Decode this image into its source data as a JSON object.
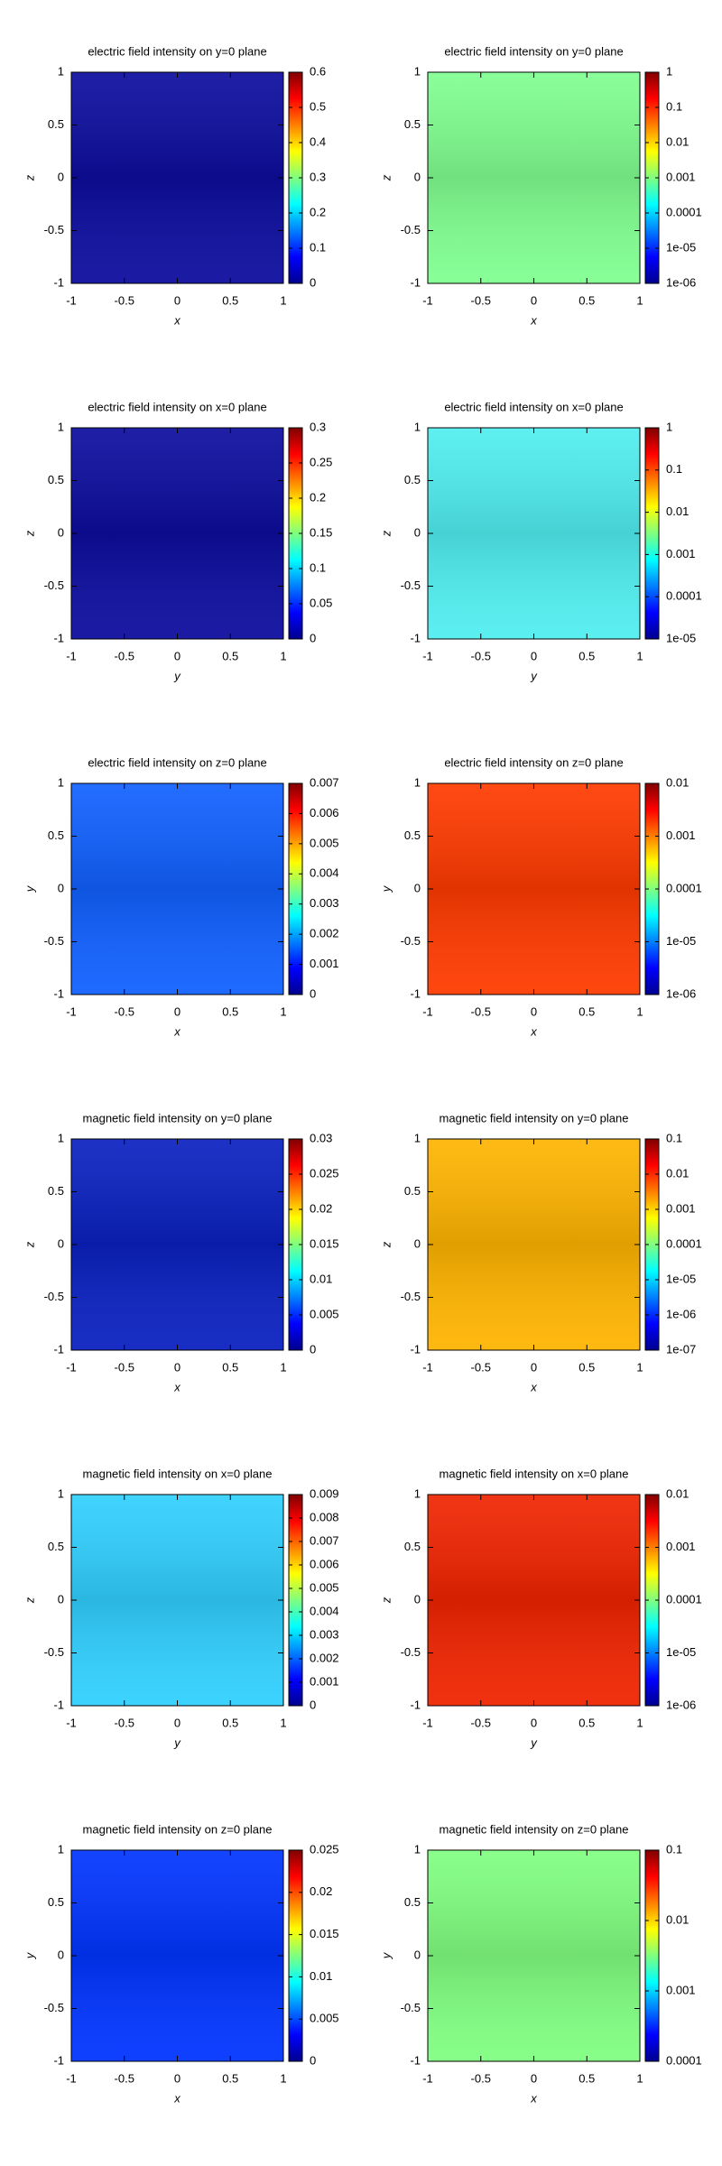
{
  "chart_data": [
    {
      "type": "heatmap",
      "title": "electric field intensity on y=0 plane",
      "xlabel": "x",
      "ylabel": "z",
      "xlim": [
        -1,
        1
      ],
      "xticks": [
        -1,
        -0.5,
        0,
        0.5,
        1
      ],
      "ylim": [
        -1,
        1
      ],
      "yticks": [
        -1,
        -0.5,
        0,
        0.5,
        1
      ],
      "color": "#0c0c9e",
      "clim": [
        0,
        0.6
      ],
      "cticks": [
        0,
        0.1,
        0.2,
        0.3,
        0.4,
        0.5,
        0.6
      ],
      "log_colorbar": false
    },
    {
      "type": "heatmap",
      "title": "electric field intensity on y=0 plane",
      "xlabel": "x",
      "ylabel": "z",
      "xlim": [
        -1,
        1
      ],
      "xticks": [
        -1,
        -0.5,
        0,
        0.5,
        1
      ],
      "ylim": [
        -1,
        1
      ],
      "yticks": [
        -1,
        -0.5,
        0,
        0.5,
        1
      ],
      "color": "#80ff90",
      "clim": [
        1e-06,
        1
      ],
      "cticks": [
        {
          "value": 1e-06,
          "label": "1e-06"
        },
        {
          "value": 1e-05,
          "label": "1e-05"
        },
        0.0001,
        0.001,
        0.01,
        0.1,
        1
      ],
      "log_colorbar": true
    },
    {
      "type": "heatmap",
      "title": "electric field intensity on x=0 plane",
      "xlabel": "y",
      "ylabel": "z",
      "xlim": [
        -1,
        1
      ],
      "xticks": [
        -1,
        -0.5,
        0,
        0.5,
        1
      ],
      "ylim": [
        -1,
        1
      ],
      "yticks": [
        -1,
        -0.5,
        0,
        0.5,
        1
      ],
      "color": "#0c0c9e",
      "clim": [
        0,
        0.3
      ],
      "cticks": [
        0,
        0.05,
        0.1,
        0.15,
        0.2,
        0.25,
        0.3
      ],
      "log_colorbar": false
    },
    {
      "type": "heatmap",
      "title": "electric field intensity on x=0 plane",
      "xlabel": "y",
      "ylabel": "z",
      "xlim": [
        -1,
        1
      ],
      "xticks": [
        -1,
        -0.5,
        0,
        0.5,
        1
      ],
      "ylim": [
        -1,
        1
      ],
      "yticks": [
        -1,
        -0.5,
        0,
        0.5,
        1
      ],
      "color": "#50eef0",
      "clim": [
        1e-05,
        1
      ],
      "cticks": [
        {
          "value": 1e-05,
          "label": "1e-05"
        },
        0.0001,
        0.001,
        0.01,
        0.1,
        1
      ],
      "log_colorbar": true
    },
    {
      "type": "heatmap",
      "title": "electric field intensity on z=0 plane",
      "xlabel": "x",
      "ylabel": "y",
      "xlim": [
        -1,
        1
      ],
      "xticks": [
        -1,
        -0.5,
        0,
        0.5,
        1
      ],
      "ylim": [
        -1,
        1
      ],
      "yticks": [
        -1,
        -0.5,
        0,
        0.5,
        1
      ],
      "color": "#1060ff",
      "clim": [
        0,
        0.007
      ],
      "cticks": [
        0,
        0.001,
        0.002,
        0.003,
        0.004,
        0.005,
        0.006,
        0.007
      ],
      "log_colorbar": false
    },
    {
      "type": "heatmap",
      "title": "electric field intensity on z=0 plane",
      "xlabel": "x",
      "ylabel": "y",
      "xlim": [
        -1,
        1
      ],
      "xticks": [
        -1,
        -0.5,
        0,
        0.5,
        1
      ],
      "ylim": [
        -1,
        1
      ],
      "yticks": [
        -1,
        -0.5,
        0,
        0.5,
        1
      ],
      "color": "#ff3a00",
      "clim": [
        1e-06,
        0.01
      ],
      "cticks": [
        {
          "value": 1e-06,
          "label": "1e-06"
        },
        {
          "value": 1e-05,
          "label": "1e-05"
        },
        0.0001,
        0.001,
        0.01
      ],
      "log_colorbar": true
    },
    {
      "type": "heatmap",
      "title": "magnetic field intensity on y=0 plane",
      "xlabel": "x",
      "ylabel": "z",
      "xlim": [
        -1,
        1
      ],
      "xticks": [
        -1,
        -0.5,
        0,
        0.5,
        1
      ],
      "ylim": [
        -1,
        1
      ],
      "yticks": [
        -1,
        -0.5,
        0,
        0.5,
        1
      ],
      "color": "#0a20c0",
      "clim": [
        0,
        0.03
      ],
      "cticks": [
        0,
        0.005,
        0.01,
        0.015,
        0.02,
        0.025,
        0.03
      ],
      "log_colorbar": false
    },
    {
      "type": "heatmap",
      "title": "magnetic field intensity on y=0 plane",
      "xlabel": "x",
      "ylabel": "z",
      "xlim": [
        -1,
        1
      ],
      "xticks": [
        -1,
        -0.5,
        0,
        0.5,
        1
      ],
      "ylim": [
        -1,
        1
      ],
      "yticks": [
        -1,
        -0.5,
        0,
        0.5,
        1
      ],
      "color": "#ffb400",
      "clim": [
        1e-07,
        0.1
      ],
      "cticks": [
        {
          "value": 1e-07,
          "label": "1e-07"
        },
        {
          "value": 1e-06,
          "label": "1e-06"
        },
        {
          "value": 1e-05,
          "label": "1e-05"
        },
        0.0001,
        0.001,
        0.01,
        0.1
      ],
      "log_colorbar": true
    },
    {
      "type": "heatmap",
      "title": "magnetic field intensity on x=0 plane",
      "xlabel": "y",
      "ylabel": "z",
      "xlim": [
        -1,
        1
      ],
      "xticks": [
        -1,
        -0.5,
        0,
        0.5,
        1
      ],
      "ylim": [
        -1,
        1
      ],
      "yticks": [
        -1,
        -0.5,
        0,
        0.5,
        1
      ],
      "color": "#30d0ff",
      "clim": [
        0,
        0.009
      ],
      "cticks": [
        0,
        0.001,
        0.002,
        0.003,
        0.004,
        0.005,
        0.006,
        0.007,
        0.008,
        0.009
      ],
      "log_colorbar": false
    },
    {
      "type": "heatmap",
      "title": "magnetic field intensity on x=0 plane",
      "xlabel": "y",
      "ylabel": "z",
      "xlim": [
        -1,
        1
      ],
      "xticks": [
        -1,
        -0.5,
        0,
        0.5,
        1
      ],
      "ylim": [
        -1,
        1
      ],
      "yticks": [
        -1,
        -0.5,
        0,
        0.5,
        1
      ],
      "color": "#f02400",
      "clim": [
        1e-06,
        0.01
      ],
      "cticks": [
        {
          "value": 1e-06,
          "label": "1e-06"
        },
        {
          "value": 1e-05,
          "label": "1e-05"
        },
        0.0001,
        0.001,
        0.01
      ],
      "log_colorbar": true
    },
    {
      "type": "heatmap",
      "title": "magnetic field intensity on z=0 plane",
      "xlabel": "x",
      "ylabel": "y",
      "xlim": [
        -1,
        1
      ],
      "xticks": [
        -1,
        -0.5,
        0,
        0.5,
        1
      ],
      "ylim": [
        -1,
        1
      ],
      "yticks": [
        -1,
        -0.5,
        0,
        0.5,
        1
      ],
      "color": "#0034ff",
      "clim": [
        0,
        0.025
      ],
      "cticks": [
        0,
        0.005,
        0.01,
        0.015,
        0.02,
        0.025
      ],
      "log_colorbar": false
    },
    {
      "type": "heatmap",
      "title": "magnetic field intensity on z=0 plane",
      "xlabel": "x",
      "ylabel": "y",
      "xlim": [
        -1,
        1
      ],
      "xticks": [
        -1,
        -0.5,
        0,
        0.5,
        1
      ],
      "ylim": [
        -1,
        1
      ],
      "yticks": [
        -1,
        -0.5,
        0,
        0.5,
        1
      ],
      "color": "#80ff80",
      "clim": [
        0.0001,
        0.1
      ],
      "cticks": [
        0.0001,
        0.001,
        0.01,
        0.1
      ],
      "log_colorbar": true
    }
  ]
}
